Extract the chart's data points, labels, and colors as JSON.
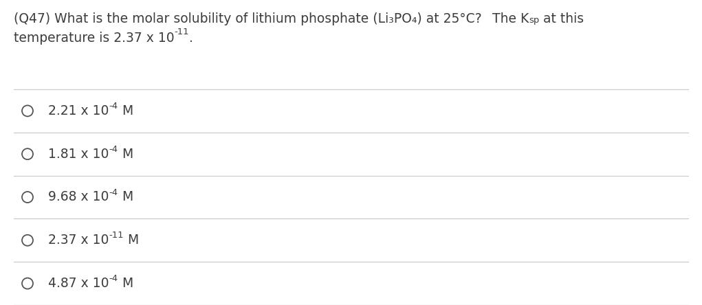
{
  "background_color": "#ffffff",
  "text_color": "#3d3d3d",
  "line_color": "#cccccc",
  "font_size_title": 13.5,
  "font_size_options": 13.5,
  "options_raw": [
    "2.21 x 10",
    "1.81 x 10",
    "9.68 x 10",
    "2.37 x 10",
    "4.87 x 10"
  ],
  "options_sup": [
    "-4",
    "-4",
    "-4",
    "-11",
    "-4"
  ],
  "options_suffix": [
    " M",
    " M",
    " M",
    " M",
    " M"
  ],
  "q_line1_main": "(Q47) What is the molar solubility of lithium phosphate (Li₃PO₄) at 25°C?  The K",
  "q_line1_sub": "sp",
  "q_line1_end": " at this",
  "q_line2": "temperature is 2.37 x 10",
  "q_line2_sup": "-11",
  "q_line2_end": "."
}
